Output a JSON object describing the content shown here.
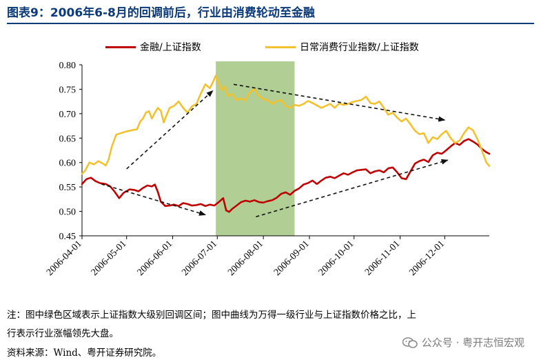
{
  "title": "图表9：2006年6-8月的回调前后，行业由消费轮动至金融",
  "notes": {
    "line1": "注：图中绿色区域表示上证指数大级别回调区间；图中曲线为万得一级行业与上证指数价格之比，上",
    "line2": "行表示行业涨幅领先大盘。",
    "source": "资料来源：Wind、粤开证券研究院。"
  },
  "watermark": "公众号 · 粤开志恒宏观",
  "chart_data": {
    "type": "line",
    "title": "",
    "xlabel": "",
    "ylabel": "",
    "ylim": [
      0.45,
      0.8
    ],
    "yticks": [
      "0.45",
      "0.50",
      "0.55",
      "0.60",
      "0.65",
      "0.70",
      "0.75",
      "0.80"
    ],
    "x_range": [
      "2006-04-01",
      "2006-12-31"
    ],
    "xticks": [
      "2006-04-01",
      "2006-05-01",
      "2006-06-01",
      "2006-07-01",
      "2006-08-01",
      "2006-09-01",
      "2006-10-01",
      "2006-11-01",
      "2006-12-01"
    ],
    "shaded_region": {
      "start": "2006-06-30",
      "end": "2006-08-22",
      "color": "#a9c98a"
    },
    "series": [
      {
        "name": "金融/上证指数",
        "color": "#c00000",
        "points": [
          [
            "2006-04-01",
            0.556
          ],
          [
            "2006-04-04",
            0.566
          ],
          [
            "2006-04-07",
            0.569
          ],
          [
            "2006-04-10",
            0.562
          ],
          [
            "2006-04-13",
            0.558
          ],
          [
            "2006-04-17",
            0.556
          ],
          [
            "2006-04-20",
            0.551
          ],
          [
            "2006-04-23",
            0.54
          ],
          [
            "2006-04-26",
            0.527
          ],
          [
            "2006-04-29",
            0.538
          ],
          [
            "2006-05-03",
            0.545
          ],
          [
            "2006-05-06",
            0.544
          ],
          [
            "2006-05-09",
            0.541
          ],
          [
            "2006-05-12",
            0.548
          ],
          [
            "2006-05-15",
            0.553
          ],
          [
            "2006-05-18",
            0.551
          ],
          [
            "2006-05-20",
            0.555
          ],
          [
            "2006-05-22",
            0.54
          ],
          [
            "2006-05-24",
            0.52
          ],
          [
            "2006-05-27",
            0.511
          ],
          [
            "2006-05-30",
            0.512
          ],
          [
            "2006-06-02",
            0.514
          ],
          [
            "2006-06-05",
            0.511
          ],
          [
            "2006-06-08",
            0.517
          ],
          [
            "2006-06-11",
            0.515
          ],
          [
            "2006-06-14",
            0.512
          ],
          [
            "2006-06-17",
            0.513
          ],
          [
            "2006-06-20",
            0.515
          ],
          [
            "2006-06-23",
            0.511
          ],
          [
            "2006-06-26",
            0.514
          ],
          [
            "2006-06-29",
            0.512
          ],
          [
            "2006-07-02",
            0.519
          ],
          [
            "2006-07-05",
            0.527
          ],
          [
            "2006-07-07",
            0.502
          ],
          [
            "2006-07-09",
            0.499
          ],
          [
            "2006-07-11",
            0.505
          ],
          [
            "2006-07-14",
            0.512
          ],
          [
            "2006-07-17",
            0.519
          ],
          [
            "2006-07-20",
            0.522
          ],
          [
            "2006-07-23",
            0.52
          ],
          [
            "2006-07-26",
            0.523
          ],
          [
            "2006-07-29",
            0.519
          ],
          [
            "2006-08-01",
            0.518
          ],
          [
            "2006-08-04",
            0.521
          ],
          [
            "2006-08-07",
            0.523
          ],
          [
            "2006-08-10",
            0.528
          ],
          [
            "2006-08-13",
            0.536
          ],
          [
            "2006-08-16",
            0.539
          ],
          [
            "2006-08-19",
            0.534
          ],
          [
            "2006-08-22",
            0.542
          ],
          [
            "2006-08-25",
            0.547
          ],
          [
            "2006-08-28",
            0.555
          ],
          [
            "2006-08-31",
            0.558
          ],
          [
            "2006-09-03",
            0.563
          ],
          [
            "2006-09-06",
            0.556
          ],
          [
            "2006-09-09",
            0.563
          ],
          [
            "2006-09-12",
            0.569
          ],
          [
            "2006-09-15",
            0.571
          ],
          [
            "2006-09-18",
            0.568
          ],
          [
            "2006-09-21",
            0.573
          ],
          [
            "2006-09-24",
            0.578
          ],
          [
            "2006-09-27",
            0.575
          ],
          [
            "2006-09-30",
            0.58
          ],
          [
            "2006-10-03",
            0.584
          ],
          [
            "2006-10-06",
            0.585
          ],
          [
            "2006-10-09",
            0.586
          ],
          [
            "2006-10-12",
            0.578
          ],
          [
            "2006-10-15",
            0.582
          ],
          [
            "2006-10-18",
            0.584
          ],
          [
            "2006-10-21",
            0.58
          ],
          [
            "2006-10-24",
            0.588
          ],
          [
            "2006-10-27",
            0.59
          ],
          [
            "2006-10-30",
            0.58
          ],
          [
            "2006-11-02",
            0.568
          ],
          [
            "2006-11-05",
            0.566
          ],
          [
            "2006-11-08",
            0.582
          ],
          [
            "2006-11-11",
            0.598
          ],
          [
            "2006-11-14",
            0.603
          ],
          [
            "2006-11-17",
            0.606
          ],
          [
            "2006-11-20",
            0.601
          ],
          [
            "2006-11-23",
            0.615
          ],
          [
            "2006-11-26",
            0.62
          ],
          [
            "2006-11-29",
            0.618
          ],
          [
            "2006-12-02",
            0.625
          ],
          [
            "2006-12-05",
            0.633
          ],
          [
            "2006-12-08",
            0.64
          ],
          [
            "2006-12-11",
            0.636
          ],
          [
            "2006-12-14",
            0.644
          ],
          [
            "2006-12-17",
            0.648
          ],
          [
            "2006-12-20",
            0.643
          ],
          [
            "2006-12-23",
            0.637
          ],
          [
            "2006-12-26",
            0.628
          ],
          [
            "2006-12-29",
            0.621
          ],
          [
            "2006-12-31",
            0.618
          ]
        ]
      },
      {
        "name": "日常消费行业指数/上证指数",
        "color": "#f2c12e",
        "points": [
          [
            "2006-04-01",
            0.577
          ],
          [
            "2006-04-03",
            0.583
          ],
          [
            "2006-04-06",
            0.6
          ],
          [
            "2006-04-09",
            0.596
          ],
          [
            "2006-04-12",
            0.603
          ],
          [
            "2006-04-15",
            0.598
          ],
          [
            "2006-04-17",
            0.594
          ],
          [
            "2006-04-19",
            0.607
          ],
          [
            "2006-04-21",
            0.632
          ],
          [
            "2006-04-24",
            0.657
          ],
          [
            "2006-04-27",
            0.66
          ],
          [
            "2006-04-30",
            0.663
          ],
          [
            "2006-05-03",
            0.665
          ],
          [
            "2006-05-06",
            0.667
          ],
          [
            "2006-05-08",
            0.668
          ],
          [
            "2006-05-10",
            0.683
          ],
          [
            "2006-05-12",
            0.69
          ],
          [
            "2006-05-14",
            0.702
          ],
          [
            "2006-05-16",
            0.705
          ],
          [
            "2006-05-18",
            0.69
          ],
          [
            "2006-05-20",
            0.702
          ],
          [
            "2006-05-22",
            0.712
          ],
          [
            "2006-05-24",
            0.706
          ],
          [
            "2006-05-26",
            0.682
          ],
          [
            "2006-05-28",
            0.698
          ],
          [
            "2006-05-30",
            0.712
          ],
          [
            "2006-06-02",
            0.716
          ],
          [
            "2006-06-05",
            0.725
          ],
          [
            "2006-06-08",
            0.712
          ],
          [
            "2006-06-11",
            0.702
          ],
          [
            "2006-06-14",
            0.715
          ],
          [
            "2006-06-17",
            0.72
          ],
          [
            "2006-06-20",
            0.742
          ],
          [
            "2006-06-23",
            0.76
          ],
          [
            "2006-06-26",
            0.752
          ],
          [
            "2006-06-28",
            0.764
          ],
          [
            "2006-06-30",
            0.778
          ],
          [
            "2006-07-02",
            0.762
          ],
          [
            "2006-07-04",
            0.748
          ],
          [
            "2006-07-06",
            0.756
          ],
          [
            "2006-07-08",
            0.736
          ],
          [
            "2006-07-11",
            0.74
          ],
          [
            "2006-07-14",
            0.728
          ],
          [
            "2006-07-17",
            0.731
          ],
          [
            "2006-07-20",
            0.727
          ],
          [
            "2006-07-23",
            0.744
          ],
          [
            "2006-07-26",
            0.75
          ],
          [
            "2006-07-29",
            0.736
          ],
          [
            "2006-08-01",
            0.73
          ],
          [
            "2006-08-04",
            0.727
          ],
          [
            "2006-08-07",
            0.72
          ],
          [
            "2006-08-10",
            0.726
          ],
          [
            "2006-08-13",
            0.728
          ],
          [
            "2006-08-16",
            0.716
          ],
          [
            "2006-08-19",
            0.712
          ],
          [
            "2006-08-22",
            0.718
          ],
          [
            "2006-08-25",
            0.716
          ],
          [
            "2006-08-28",
            0.72
          ],
          [
            "2006-08-31",
            0.726
          ],
          [
            "2006-09-03",
            0.722
          ],
          [
            "2006-09-06",
            0.717
          ],
          [
            "2006-09-09",
            0.712
          ],
          [
            "2006-09-12",
            0.716
          ],
          [
            "2006-09-15",
            0.72
          ],
          [
            "2006-09-18",
            0.712
          ],
          [
            "2006-09-21",
            0.721
          ],
          [
            "2006-09-24",
            0.718
          ],
          [
            "2006-09-27",
            0.72
          ],
          [
            "2006-09-30",
            0.724
          ],
          [
            "2006-10-03",
            0.726
          ],
          [
            "2006-10-06",
            0.728
          ],
          [
            "2006-10-09",
            0.735
          ],
          [
            "2006-10-12",
            0.722
          ],
          [
            "2006-10-15",
            0.72
          ],
          [
            "2006-10-18",
            0.725
          ],
          [
            "2006-10-21",
            0.712
          ],
          [
            "2006-10-24",
            0.698
          ],
          [
            "2006-10-27",
            0.702
          ],
          [
            "2006-10-30",
            0.692
          ],
          [
            "2006-11-02",
            0.684
          ],
          [
            "2006-11-05",
            0.69
          ],
          [
            "2006-11-08",
            0.678
          ],
          [
            "2006-11-11",
            0.665
          ],
          [
            "2006-11-14",
            0.658
          ],
          [
            "2006-11-17",
            0.66
          ],
          [
            "2006-11-20",
            0.64
          ],
          [
            "2006-11-23",
            0.652
          ],
          [
            "2006-11-26",
            0.648
          ],
          [
            "2006-11-29",
            0.658
          ],
          [
            "2006-12-02",
            0.665
          ],
          [
            "2006-12-05",
            0.65
          ],
          [
            "2006-12-08",
            0.64
          ],
          [
            "2006-12-11",
            0.645
          ],
          [
            "2006-12-14",
            0.66
          ],
          [
            "2006-12-17",
            0.672
          ],
          [
            "2006-12-20",
            0.666
          ],
          [
            "2006-12-23",
            0.648
          ],
          [
            "2006-12-26",
            0.625
          ],
          [
            "2006-12-29",
            0.6
          ],
          [
            "2006-12-31",
            0.593
          ]
        ]
      }
    ],
    "annotations": [
      {
        "type": "dashed-arrow",
        "from": [
          "2006-05-01",
          0.587
        ],
        "to": [
          "2006-06-28",
          0.747
        ]
      },
      {
        "type": "dashed-arrow",
        "from": [
          "2006-07-12",
          0.76
        ],
        "to": [
          "2006-12-01",
          0.687
        ]
      },
      {
        "type": "dashed-arrow",
        "from": [
          "2006-04-14",
          0.556
        ],
        "to": [
          "2006-06-23",
          0.493
        ]
      },
      {
        "type": "dashed-arrow",
        "from": [
          "2006-07-27",
          0.489
        ],
        "to": [
          "2006-12-03",
          0.605
        ]
      }
    ]
  }
}
